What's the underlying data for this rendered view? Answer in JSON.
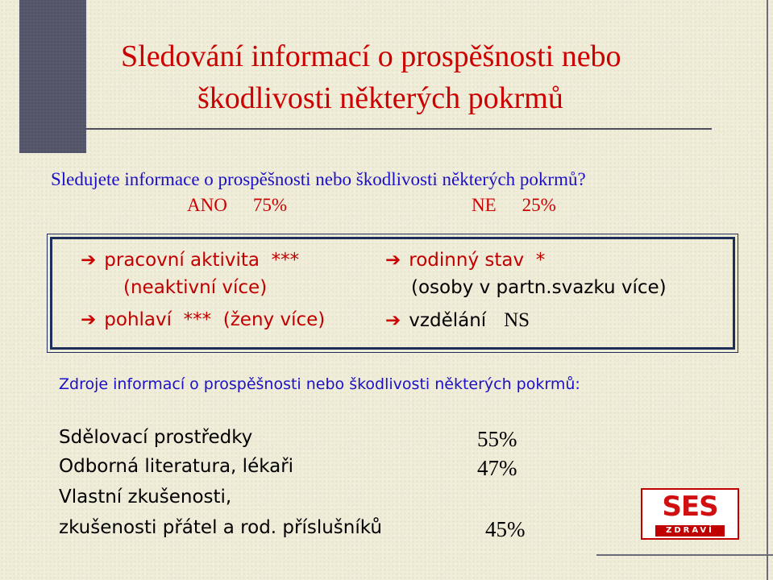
{
  "title": {
    "line1": "Sledování informací o prospěšnosti nebo",
    "line2": "škodlivosti některých pokrmů"
  },
  "question": {
    "text": "Sledujete informace o prospěšnosti nebo škodlivosti některých pokrmů?",
    "yes_label": "ANO",
    "yes_pct": "75%",
    "no_label": "NE",
    "no_pct": "25%"
  },
  "factors": {
    "arrow": "➔",
    "left1_label": "pracovní aktivita",
    "left1_sig": "***",
    "left1_note": "(neaktivní více)",
    "left2_label": "pohlaví",
    "left2_sig": "***",
    "left2_note": "(ženy více)",
    "right1_label": "rodinný stav",
    "right1_sig": "*",
    "right1_note": "(osoby v partn.svazku více)",
    "right2_label": "vzdělání",
    "right2_sig": "NS"
  },
  "sources": {
    "heading": "Zdroje informací o prospěšnosti nebo škodlivosti některých pokrmů:",
    "items": [
      {
        "label": "Sdělovací prostředky",
        "value": "55%"
      },
      {
        "label": "Odborná literatura, lékaři",
        "value": "47%"
      },
      {
        "label": "Vlastní zkušenosti,",
        "value": ""
      },
      {
        "label": "zkušenosti přátel a rod. příslušníků",
        "value": "45%"
      }
    ]
  },
  "logo": {
    "main": "SES",
    "sub": "ZDRAVÍ"
  },
  "colors": {
    "title": "#cc0000",
    "question": "#1c10c6",
    "box_border": "#1e2e5a",
    "side_bar": "#545469"
  }
}
